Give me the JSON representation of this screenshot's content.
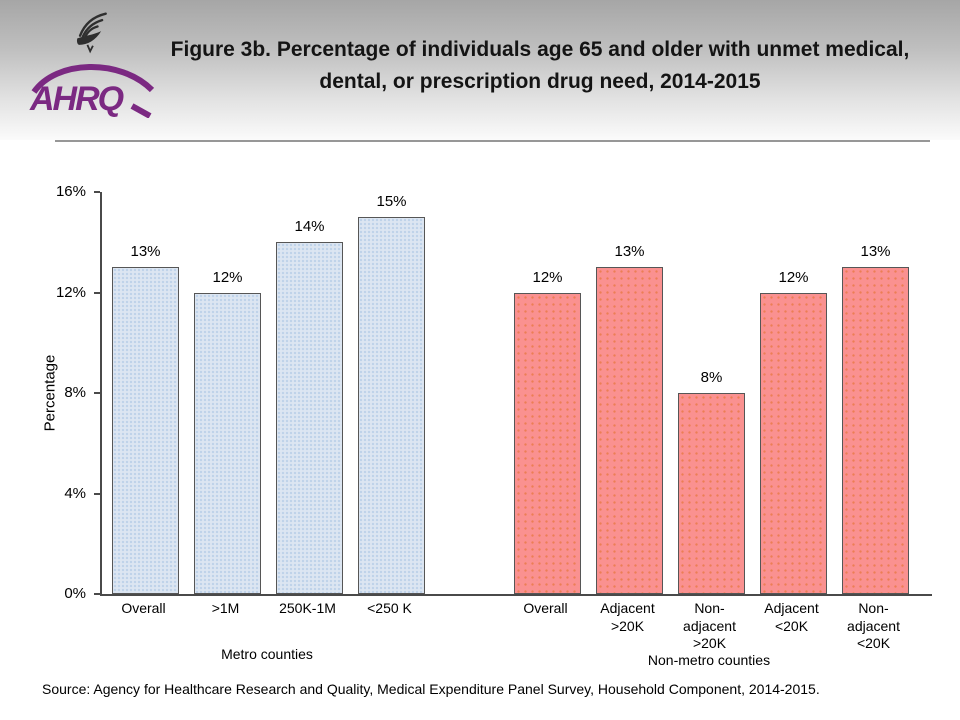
{
  "header": {
    "logo_text": "AHRQ",
    "title": "Figure 3b. Percentage of individuals age 65 and older with unmet medical, dental, or prescription drug need, 2014-2015"
  },
  "chart_data": {
    "type": "bar",
    "title": "Figure 3b. Percentage of individuals age 65 and older with unmet medical, dental, or prescription drug need, 2014-2015",
    "ylabel": "Percentage",
    "xlabel": "",
    "ylim": [
      0,
      16
    ],
    "ytick_values": [
      16,
      12,
      8,
      4,
      0
    ],
    "ytick_suffix": "%",
    "grid": false,
    "legend": "none",
    "groups": [
      {
        "name": "Metro counties",
        "fill": "#dce6f2",
        "dot": "#bed2e9",
        "categories": [
          "Overall",
          ">1M",
          "250K-1M",
          "<250 K"
        ],
        "values": [
          13,
          12,
          14,
          15
        ]
      },
      {
        "name": "Non-metro counties",
        "fill": "#fa9190",
        "dot": "#ec7e55",
        "categories": [
          "Overall",
          "Adjacent\n>20K",
          "Non-\nadjacent\n>20K",
          "Adjacent\n<20K",
          "Non-\nadjacent\n<20K"
        ],
        "values": [
          12,
          13,
          8,
          12,
          13
        ]
      }
    ]
  },
  "source": "Source: Agency for Healthcare Research and Quality, Medical Expenditure Panel Survey, Household Component, 2014-2015."
}
